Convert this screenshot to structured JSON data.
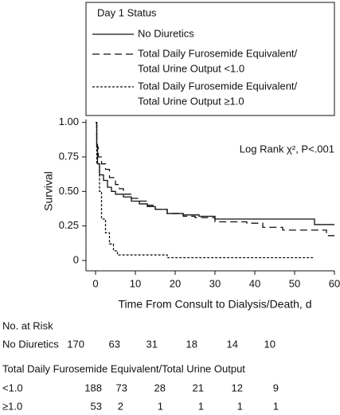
{
  "chart_data": {
    "type": "step",
    "legend_title": "Day 1 Status",
    "annotation": "Log Rank χ², P<.001",
    "xlabel": "Time From Consult to Dialysis/Death, d",
    "ylabel": "Survival",
    "xlim": [
      -2.4,
      60
    ],
    "xticks": [
      0,
      10,
      20,
      30,
      40,
      50,
      60
    ],
    "ylim": [
      -0.075,
      1.05
    ],
    "yticks": [
      {
        "value": 1,
        "label": "1.00"
      },
      0.75,
      {
        "value": 0.5,
        "label": "0.50"
      },
      0.25,
      0
    ],
    "legend": "top",
    "series": [
      {
        "name": [
          "No Diuretics"
        ],
        "color": "#111",
        "dash": "none",
        "x": [
          0,
          0.3,
          0.5,
          1,
          2,
          3,
          4,
          5,
          7,
          9,
          11,
          13,
          15,
          18,
          22,
          26,
          30,
          50,
          55,
          60
        ],
        "values": [
          1,
          0.84,
          0.7,
          0.62,
          0.58,
          0.53,
          0.5,
          0.48,
          0.46,
          0.43,
          0.41,
          0.39,
          0.37,
          0.34,
          0.33,
          0.32,
          0.3,
          0.3,
          0.26,
          0.26
        ]
      },
      {
        "name": [
          "Total Daily Furosemide Equivalent/",
          "Total Urine Output <1.0"
        ],
        "color": "#111",
        "dash": "9 5",
        "x": [
          0,
          0.3,
          0.7,
          1.5,
          2.5,
          3.5,
          5,
          6,
          7,
          9,
          11,
          13,
          15,
          18,
          22,
          25,
          30,
          38,
          42,
          47,
          58,
          60
        ],
        "values": [
          1,
          0.82,
          0.75,
          0.7,
          0.66,
          0.6,
          0.55,
          0.52,
          0.48,
          0.45,
          0.43,
          0.4,
          0.37,
          0.34,
          0.32,
          0.31,
          0.28,
          0.27,
          0.24,
          0.22,
          0.18,
          0.18
        ]
      },
      {
        "name": [
          "Total Daily Furosemide Equivalent/",
          "Total Urine Output ≥1.0"
        ],
        "color": "#111",
        "dash": "3 2",
        "x": [
          0,
          0.3,
          1,
          1.5,
          2.5,
          3.5,
          4.5,
          5.5,
          18,
          55
        ],
        "values": [
          1,
          0.7,
          0.5,
          0.3,
          0.2,
          0.12,
          0.07,
          0.04,
          0.02,
          0.02
        ]
      }
    ],
    "risk_table": {
      "title": "No. at Risk",
      "subheading": "Total Daily Furosemide Equivalent/Total Urine Output",
      "rows": [
        {
          "label": "No Diuretics",
          "values": [
            170,
            63,
            31,
            18,
            14,
            10
          ]
        },
        {
          "label": "<1.0",
          "values": [
            188,
            73,
            28,
            21,
            12,
            9
          ]
        },
        {
          "label": "≥1.0",
          "values": [
            53,
            2,
            1,
            1,
            1,
            1
          ]
        }
      ]
    }
  }
}
